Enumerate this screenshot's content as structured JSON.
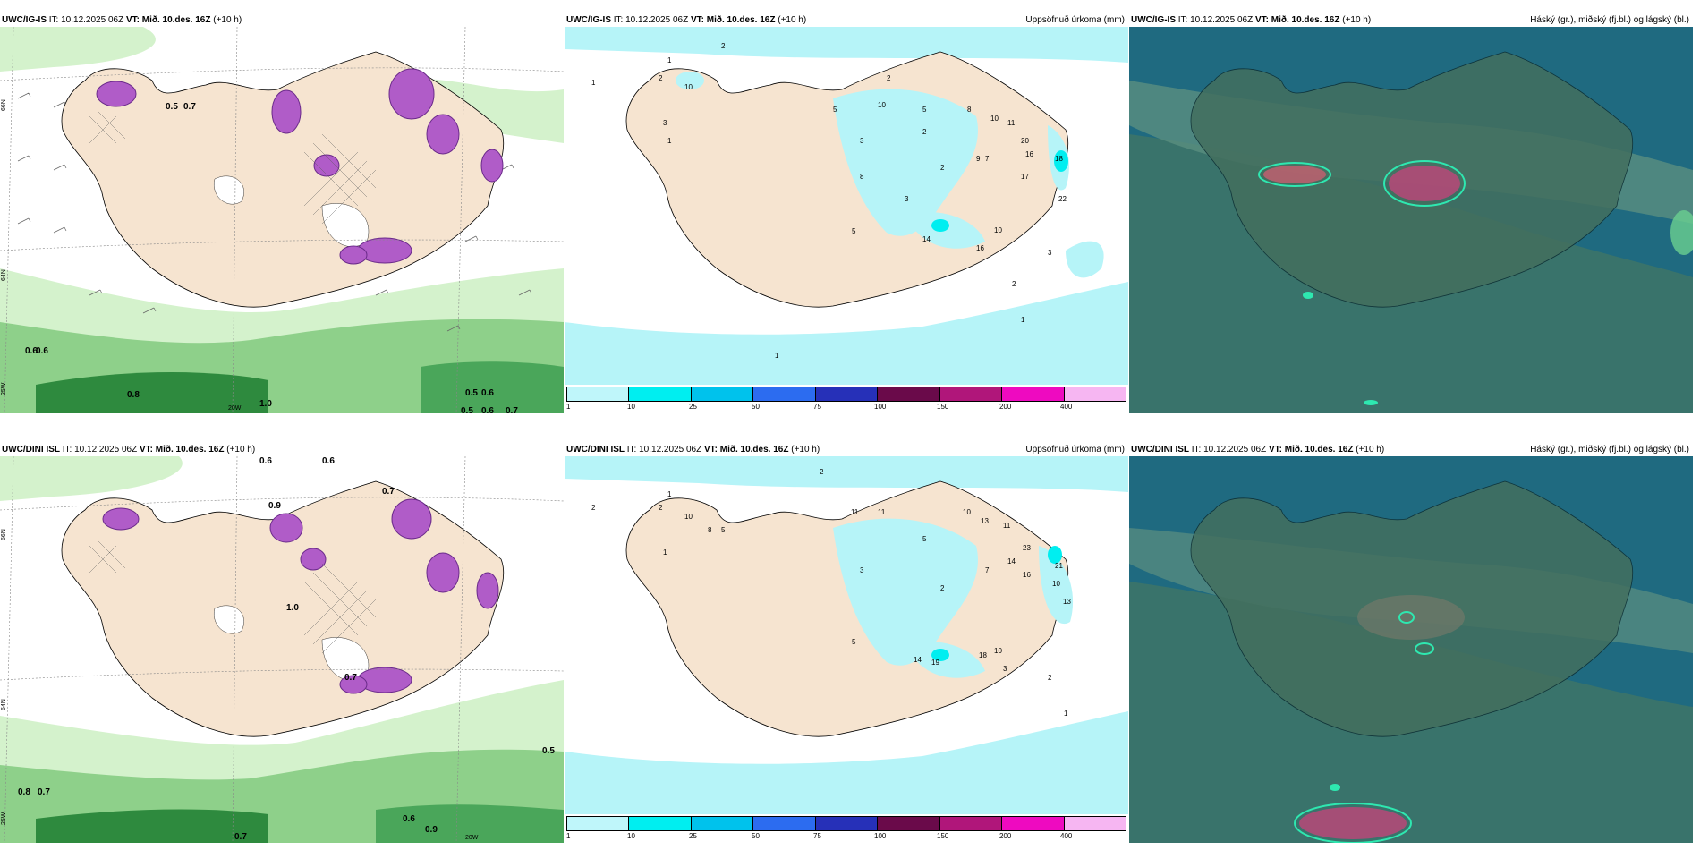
{
  "panels": {
    "top_left": {
      "model": "UWC/IG-IS",
      "it_label": "IT: 10.12.2025 06Z",
      "vt_label": "VT: Mið. 10.des. 16Z",
      "lead": "(+10 h)",
      "field": "",
      "contour_labels": [
        "0.6",
        "0.6",
        "0.8",
        "0.5",
        "0.6",
        "0.6",
        "0.7",
        "0.5",
        "1.0",
        "0.7",
        "0.5"
      ],
      "lat_labels": [
        "66N",
        "65N",
        "64N"
      ],
      "lon_labels": [
        "25W",
        "20W"
      ]
    },
    "top_mid": {
      "model": "UWC/IG-IS",
      "it_label": "IT: 10.12.2025 06Z",
      "vt_label": "VT: Mið. 10.des. 16Z",
      "lead": "(+10 h)",
      "field": "Uppsöfnuð úrkoma (mm)",
      "values": [
        "2",
        "1",
        "1",
        "2",
        "10",
        "3",
        "1",
        "5",
        "2",
        "10",
        "5",
        "3",
        "2",
        "8",
        "8",
        "9",
        "10",
        "11",
        "20",
        "16",
        "18",
        "17",
        "22",
        "7",
        "2",
        "3",
        "5",
        "14",
        "16",
        "10",
        "3",
        "2",
        "1",
        "1"
      ]
    },
    "top_right": {
      "model": "UWC/IG-IS",
      "it_label": "IT: 10.12.2025 06Z",
      "vt_label": "VT: Mið. 10.des. 16Z",
      "lead": "(+10 h)",
      "field": "Háský (gr.), miðský (fj.bl.) og lágský (bl.)"
    },
    "bottom_left": {
      "model": "UWC/DINI ISL",
      "it_label": "IT: 10.12.2025 06Z",
      "vt_label": "VT: Mið. 10.des. 16Z",
      "lead": "(+10 h)",
      "field": "",
      "contour_labels": [
        "0.6",
        "0.6",
        "0.7",
        "0.9",
        "0.8",
        "0.7",
        "0.5",
        "0.6",
        "0.9",
        "0.7",
        "1.0",
        "0.7"
      ],
      "lat_labels": [
        "66N",
        "65N",
        "64N"
      ],
      "lon_labels": [
        "25W",
        "20W"
      ]
    },
    "bottom_mid": {
      "model": "UWC/DINI ISL",
      "it_label": "IT: 10.12.2025 06Z",
      "vt_label": "VT: Mið. 10.des. 16Z",
      "lead": "(+10 h)",
      "field": "Uppsöfnuð úrkoma (mm)",
      "values": [
        "2",
        "1",
        "2",
        "2",
        "10",
        "1",
        "8",
        "5",
        "11",
        "11",
        "5",
        "3",
        "10",
        "13",
        "11",
        "23",
        "21",
        "16",
        "10",
        "13",
        "7",
        "14",
        "2",
        "14",
        "19",
        "18",
        "10",
        "3",
        "2",
        "1",
        "5"
      ]
    },
    "bottom_right": {
      "model": "UWC/DINI ISL",
      "it_label": "IT: 10.12.2025 06Z",
      "vt_label": "VT: Mið. 10.des. 16Z",
      "lead": "(+10 h)",
      "field": "Háský (gr.), miðský (fj.bl.) og lágský (bl.)"
    }
  },
  "precip_legend": {
    "ticks": [
      "1",
      "10",
      "25",
      "50",
      "75",
      "100",
      "150",
      "200",
      "400"
    ],
    "colors": [
      "#bff6fa",
      "#00eef0",
      "#00c2ec",
      "#2c6cf0",
      "#2630b8",
      "#6a0a4a",
      "#b0167a",
      "#ee0ac0",
      "#f6b6f2"
    ]
  },
  "colors": {
    "land": "#f6e4d0",
    "sea_precip": "#b6f4f8",
    "green_light": "#d4f2cc",
    "green_mid": "#8ed08a",
    "green_dark": "#2e8a3e",
    "purple": "#b05cc8",
    "cloud_bg": "#1f6a80"
  }
}
